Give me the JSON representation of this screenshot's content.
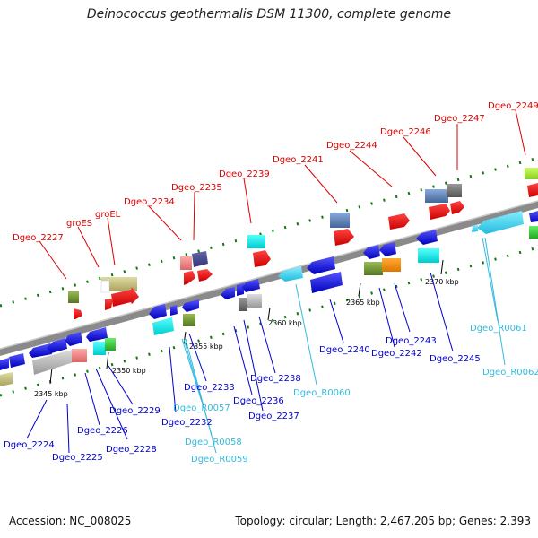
{
  "title": "Deinococcus geothermalis DSM 11300, complete genome",
  "accession": "Accession: NC_008025",
  "topology": "Topology: circular; Length: 2,467,205 bp; Genes: 2,393",
  "kbp_labels": [
    "2345 kbp",
    "2350 kbp",
    "2355 kbp",
    "2360 kbp",
    "2365 kbp",
    "2370 kbp"
  ],
  "top_labels": [
    "Dgeo_2227",
    "groES",
    "groEL",
    "Dgeo_2234",
    "Dgeo_2235",
    "Dgeo_2239",
    "Dgeo_2241",
    "Dgeo_2244",
    "Dgeo_2246",
    "Dgeo_2247",
    "Dgeo_2249"
  ],
  "bottom_labels": [
    "Dgeo_2224",
    "Dgeo_2225",
    "Dgeo_2226",
    "Dgeo_2228",
    "Dgeo_2229",
    "Dgeo_2232",
    "Dgeo_2233",
    "Dgeo_2236",
    "Dgeo_2237",
    "Dgeo_2238",
    "Dgeo_2240",
    "Dgeo_2242",
    "Dgeo_2243",
    "Dgeo_2245"
  ],
  "rna_labels": [
    "Dgeo_R0057",
    "Dgeo_R0058",
    "Dgeo_R0059",
    "Dgeo_R0060",
    "Dgeo_R0061",
    "Dgeo_R0062"
  ],
  "colors": {
    "forward_label": "#dd0000",
    "reverse_label": "#0000cc",
    "rna_label": "#33bbdd",
    "backbone": "#888888",
    "tick": "#117711"
  }
}
